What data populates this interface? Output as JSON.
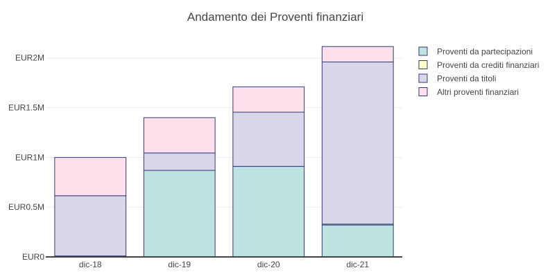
{
  "chart_data": {
    "type": "bar",
    "stacked": true,
    "title": "Andamento dei Proventi finanziari",
    "xlabel": "",
    "ylabel": "",
    "categories": [
      "dic-18",
      "dic-19",
      "dic-20",
      "dic-21"
    ],
    "ylim": [
      0,
      2200000
    ],
    "yticks": [
      0,
      500000,
      1000000,
      1500000,
      2000000
    ],
    "ytick_labels": [
      "EUR0",
      "EUR0.5M",
      "EUR1M",
      "EUR1.5M",
      "EUR2M"
    ],
    "grid": true,
    "legend_position": "top-right",
    "bar_outline_color": "#2f3a7a",
    "series": [
      {
        "name": "Proventi da partecipazioni",
        "color": "#bde4e0",
        "values": [
          10000,
          870000,
          910000,
          320000
        ]
      },
      {
        "name": "Proventi da crediti finanziari",
        "color": "#ffffcc",
        "values": [
          0,
          0,
          0,
          10000
        ]
      },
      {
        "name": "Proventi da titoli",
        "color": "#dad6e9",
        "values": [
          605000,
          175000,
          545000,
          1630000
        ]
      },
      {
        "name": "Altri proventi finanziari",
        "color": "#fde0ec",
        "values": [
          385000,
          355000,
          255000,
          155000
        ]
      }
    ]
  }
}
